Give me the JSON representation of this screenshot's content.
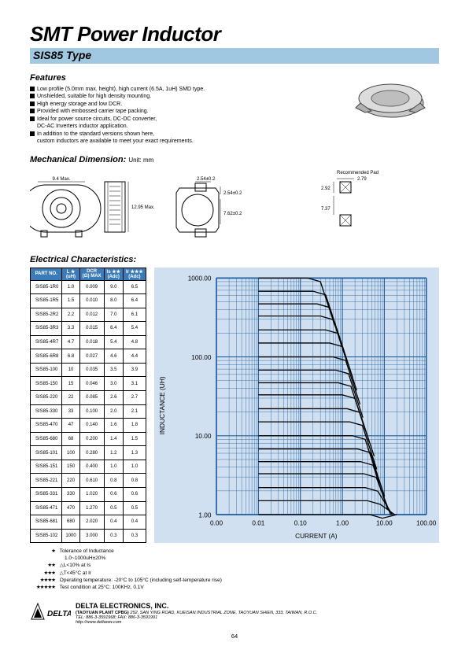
{
  "doc": {
    "title": "SMT Power Inductor",
    "subtitle": "SIS85 Type",
    "page_number": "64"
  },
  "features": {
    "heading": "Features",
    "items": [
      "Low profile (5.0mm max. height), high current (6.5A, 1uH) SMD type.",
      "Unshielded, suitable for high density mounting.",
      "High energy storage and low DCR.",
      "Provided with embossed carrier tape packing.",
      "Ideal for power source circuits, DC-DC converter,\nDC-AC Inverters inductor application.",
      "In addition to the standard versions shown here,\ncustom inductors are available to meet your exact requirements."
    ]
  },
  "mech": {
    "heading": "Mechanical Dimension:",
    "unit_label": "Unit: mm",
    "dims": {
      "width_max": "9.4 Max.",
      "pad_w": "2.54±0.2",
      "pad_h": "2.54±0.2",
      "body_h": "12.95 Max.",
      "pitch": "7.62±0.2",
      "height_max": "5.0 Max.",
      "rec_pad_label": "Recommended Pad",
      "rec_pad_w": "2.79",
      "rec_pad_side": "2.92",
      "rec_pad_gap": "7.37"
    }
  },
  "ec": {
    "heading": "Electrical Characteristics:",
    "columns": [
      "PART NO.",
      "L ★\n(uH)",
      "DCR\n(Ω) MAX",
      "Is ★★\n(Adc)",
      "Ir ★★★\n(Adc)"
    ],
    "rows": [
      [
        "SIS85-1R0",
        "1.0",
        "0.009",
        "9.0",
        "6.5"
      ],
      [
        "SIS85-1R5",
        "1.5",
        "0.010",
        "8.0",
        "6.4"
      ],
      [
        "SIS85-2R2",
        "2.2",
        "0.012",
        "7.0",
        "6.1"
      ],
      [
        "SIS85-3R3",
        "3.3",
        "0.015",
        "6.4",
        "5.4"
      ],
      [
        "SIS85-4R7",
        "4.7",
        "0.018",
        "5.4",
        "4.8"
      ],
      [
        "SIS85-6R8",
        "6.8",
        "0.027",
        "4.6",
        "4.4"
      ],
      [
        "SIS85-100",
        "10",
        "0.035",
        "3.5",
        "3.9"
      ],
      [
        "SIS85-150",
        "15",
        "0.046",
        "3.0",
        "3.1"
      ],
      [
        "SIS85-220",
        "22",
        "0.085",
        "2.6",
        "2.7"
      ],
      [
        "SIS85-330",
        "33",
        "0.100",
        "2.0",
        "2.1"
      ],
      [
        "SIS85-470",
        "47",
        "0.140",
        "1.6",
        "1.8"
      ],
      [
        "SIS85-680",
        "68",
        "0.200",
        "1.4",
        "1.5"
      ],
      [
        "SIS85-101",
        "100",
        "0.280",
        "1.2",
        "1.3"
      ],
      [
        "SIS85-151",
        "150",
        "0.400",
        "1.0",
        "1.0"
      ],
      [
        "SIS85-221",
        "220",
        "0.610",
        "0.8",
        "0.8"
      ],
      [
        "SIS85-331",
        "330",
        "1.020",
        "0.6",
        "0.6"
      ],
      [
        "SIS85-471",
        "470",
        "1.270",
        "0.5",
        "0.5"
      ],
      [
        "SIS85-681",
        "680",
        "2.020",
        "0.4",
        "0.4"
      ],
      [
        "SIS85-102",
        "1000",
        "3.000",
        "0.3",
        "0.3"
      ]
    ]
  },
  "chart": {
    "type": "line-loglog",
    "background": "#d0e0f0",
    "grid_color": "#2060a0",
    "line_color": "#000000",
    "y_label": "INDUCTANCE (UH)",
    "x_label": "CURRENT (A)",
    "x_ticks": [
      "0.00",
      "0.01",
      "0.10",
      "1.00",
      "10.00",
      "100.00"
    ],
    "y_ticks": [
      "1.00",
      "10.00",
      "100.00",
      "1000.00"
    ]
  },
  "notes": {
    "items": [
      {
        "stars": "★",
        "text": "Tolerance of Inductance",
        "sub": "1.0~1000uH±20%"
      },
      {
        "stars": "★★",
        "text": "△L<10% at Is"
      },
      {
        "stars": "★★★",
        "text": "△T<45°C  at Ir"
      },
      {
        "stars": "★★★★",
        "text": "Operating temperature: -20°C to 105°C  (including self-temperature rise)"
      },
      {
        "stars": "★★★★★",
        "text": "Test condition at 25°C: 100KHz, 0.1V"
      }
    ]
  },
  "footer": {
    "company": "DELTA ELECTRONICS, INC.",
    "plant": "(TAOYUAN PLANT CPBG)",
    "address": "252, SAN YING ROAD, KUEISAN INDUSTRIAL ZONE, TAOYUAN SHIEN, 333, TAIWAN, R.O.C.",
    "contact": "TEL: 886-3-3591968; FAX: 886-3-3591991",
    "url": "http://www.deltaww.com",
    "logo_text": "DELTA"
  },
  "colors": {
    "subtitle_bg": "#a0c8e0",
    "th_bg": "#3a7bb8",
    "chart_bg": "#d0e0f0"
  }
}
